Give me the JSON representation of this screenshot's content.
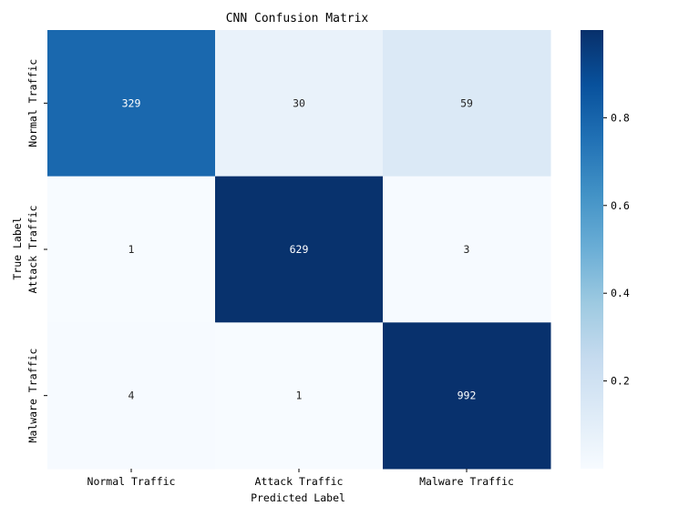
{
  "chart_data": {
    "type": "heatmap",
    "title": "CNN Confusion Matrix",
    "xlabel": "Predicted Label",
    "ylabel": "True Label",
    "x_categories": [
      "Normal Traffic",
      "Attack Traffic",
      "Malware Traffic"
    ],
    "y_categories": [
      "Normal Traffic",
      "Attack Traffic",
      "Malware Traffic"
    ],
    "counts": [
      [
        329,
        30,
        59
      ],
      [
        1,
        629,
        3
      ],
      [
        4,
        1,
        992
      ]
    ],
    "color_values": "row-normalized",
    "colorbar": {
      "range": [
        0,
        1
      ],
      "ticks": [
        "0.2",
        "0.4",
        "0.6",
        "0.8"
      ]
    },
    "colormap": [
      "#f7fbff",
      "#deebf7",
      "#c6dbef",
      "#9ecae1",
      "#6baed6",
      "#4292c6",
      "#2171b5",
      "#08519c",
      "#08306b"
    ],
    "text_color_light": "#ffffff",
    "text_color_dark": "#262626"
  }
}
